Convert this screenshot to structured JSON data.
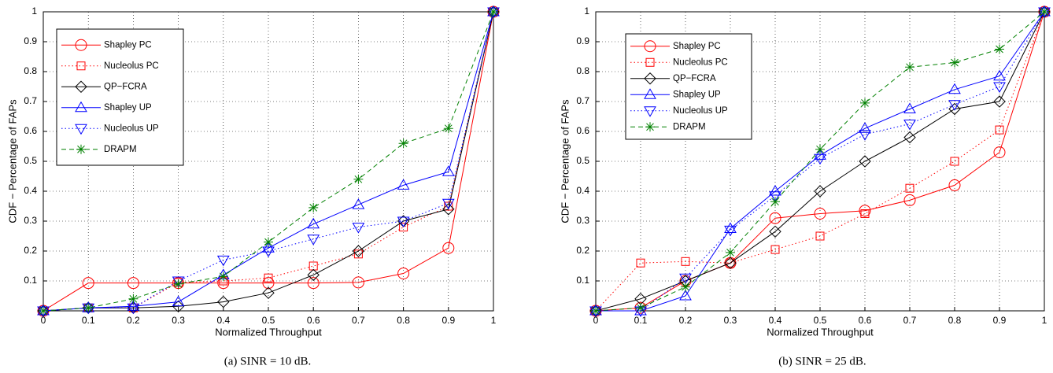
{
  "chart_data": [
    {
      "type": "line",
      "caption": "(a) SINR = 10 dB.",
      "xlabel": "Normalized Throughput",
      "ylabel": "CDF − Percentage of FAPs",
      "x": [
        0,
        0.1,
        0.2,
        0.3,
        0.4,
        0.5,
        0.6,
        0.7,
        0.8,
        0.9,
        1
      ],
      "xlim": [
        0,
        1
      ],
      "ylim": [
        0,
        1
      ],
      "xticks": [
        0,
        0.1,
        0.2,
        0.3,
        0.4,
        0.5,
        0.6,
        0.7,
        0.8,
        0.9,
        1
      ],
      "yticks": [
        0.1,
        0.2,
        0.3,
        0.4,
        0.5,
        0.6,
        0.7,
        0.8,
        0.9,
        1
      ],
      "grid": true,
      "legend": "upper left",
      "series": [
        {
          "name": "Shapley PC",
          "color": "#ff0000",
          "marker": "circle",
          "dash": "solid",
          "values": [
            0,
            0.093,
            0.093,
            0.093,
            0.093,
            0.093,
            0.093,
            0.095,
            0.125,
            0.21,
            1
          ]
        },
        {
          "name": "Nucleolus PC",
          "color": "#ff0000",
          "marker": "square",
          "dash": "dotted",
          "values": [
            0,
            0.01,
            0.01,
            0.095,
            0.1,
            0.11,
            0.15,
            0.19,
            0.28,
            0.35,
            1
          ]
        },
        {
          "name": "QP−FCRA",
          "color": "#000000",
          "marker": "diamond",
          "dash": "solid",
          "values": [
            0,
            0.01,
            0.01,
            0.015,
            0.03,
            0.06,
            0.12,
            0.2,
            0.3,
            0.34,
            1
          ]
        },
        {
          "name": "Shapley UP",
          "color": "#0000ff",
          "marker": "triangle-up",
          "dash": "solid",
          "values": [
            0,
            0.01,
            0.015,
            0.03,
            0.12,
            0.21,
            0.29,
            0.355,
            0.42,
            0.465,
            1
          ]
        },
        {
          "name": "Nucleolus UP",
          "color": "#0000ff",
          "marker": "triangle-down",
          "dash": "dotted",
          "values": [
            0,
            0.01,
            0.01,
            0.1,
            0.17,
            0.2,
            0.24,
            0.28,
            0.3,
            0.36,
            1
          ]
        },
        {
          "name": "DRAPM",
          "color": "#008000",
          "marker": "star",
          "dash": "dashed",
          "values": [
            0,
            0.01,
            0.04,
            0.09,
            0.115,
            0.23,
            0.345,
            0.44,
            0.56,
            0.61,
            1
          ]
        }
      ]
    },
    {
      "type": "line",
      "caption": "(b) SINR = 25 dB.",
      "xlabel": "Normalized Throughput",
      "ylabel": "CDF − Percentage of FAPs",
      "x": [
        0,
        0.1,
        0.2,
        0.3,
        0.4,
        0.5,
        0.6,
        0.7,
        0.8,
        0.9,
        1
      ],
      "xlim": [
        0,
        1
      ],
      "ylim": [
        0,
        1
      ],
      "xticks": [
        0,
        0.1,
        0.2,
        0.3,
        0.4,
        0.5,
        0.6,
        0.7,
        0.8,
        0.9,
        1
      ],
      "yticks": [
        0.1,
        0.2,
        0.3,
        0.4,
        0.5,
        0.6,
        0.7,
        0.8,
        0.9,
        1
      ],
      "grid": true,
      "legend": "upper left",
      "series": [
        {
          "name": "Shapley PC",
          "color": "#ff0000",
          "marker": "circle",
          "dash": "solid",
          "values": [
            0,
            0.01,
            0.1,
            0.16,
            0.31,
            0.325,
            0.335,
            0.37,
            0.42,
            0.53,
            1
          ]
        },
        {
          "name": "Nucleolus PC",
          "color": "#ff0000",
          "marker": "square",
          "dash": "dotted",
          "values": [
            0,
            0.16,
            0.165,
            0.16,
            0.205,
            0.25,
            0.325,
            0.41,
            0.5,
            0.605,
            1
          ]
        },
        {
          "name": "QP−FCRA",
          "color": "#000000",
          "marker": "diamond",
          "dash": "solid",
          "values": [
            0,
            0.04,
            0.1,
            0.16,
            0.265,
            0.4,
            0.5,
            0.58,
            0.675,
            0.7,
            1
          ]
        },
        {
          "name": "Shapley UP",
          "color": "#0000ff",
          "marker": "triangle-up",
          "dash": "solid",
          "values": [
            0,
            0,
            0.05,
            0.275,
            0.4,
            0.52,
            0.61,
            0.675,
            0.74,
            0.785,
            1
          ]
        },
        {
          "name": "Nucleolus UP",
          "color": "#0000ff",
          "marker": "triangle-down",
          "dash": "dotted",
          "values": [
            0,
            0,
            0.11,
            0.27,
            0.385,
            0.51,
            0.59,
            0.625,
            0.69,
            0.75,
            1
          ]
        },
        {
          "name": "DRAPM",
          "color": "#008000",
          "marker": "star",
          "dash": "dashed",
          "values": [
            0,
            0.01,
            0.08,
            0.195,
            0.365,
            0.54,
            0.695,
            0.815,
            0.83,
            0.875,
            1
          ]
        }
      ]
    }
  ]
}
